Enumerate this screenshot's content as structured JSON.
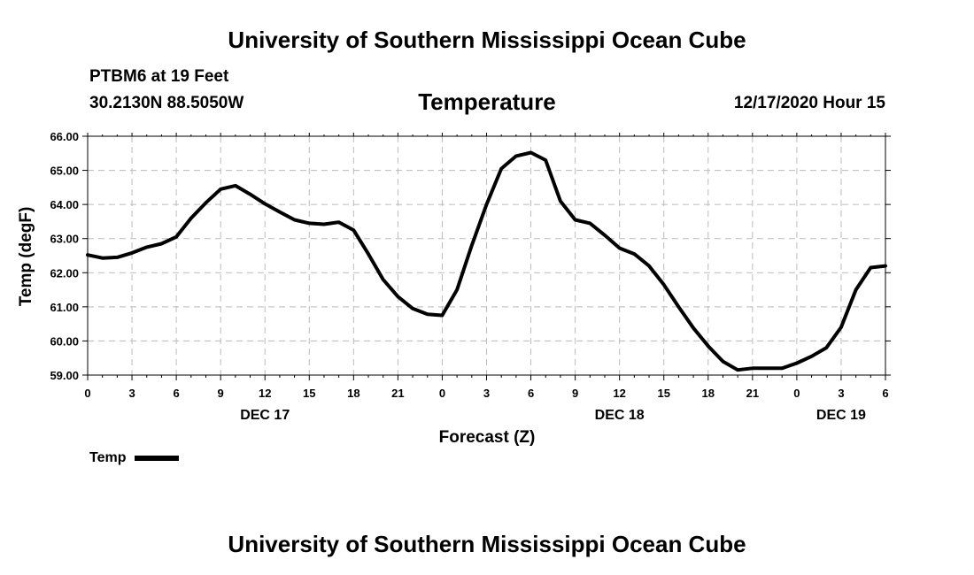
{
  "header": {
    "title": "University of Southern Mississippi Ocean Cube",
    "station": "PTBM6 at 19 Feet",
    "coords": "30.2130N 88.5050W",
    "chart_title": "Temperature",
    "issued": "12/17/2020 Hour 15"
  },
  "footer": {
    "title": "University of Southern Mississippi Ocean Cube"
  },
  "legend": {
    "label": "Temp"
  },
  "chart_data": {
    "type": "line",
    "title": "Temperature",
    "xlabel": "Forecast (Z)",
    "ylabel": "Temp (degF)",
    "xlim": [
      0,
      54
    ],
    "ylim": [
      59,
      66
    ],
    "grid": true,
    "x_ticks": [
      0,
      3,
      6,
      9,
      12,
      15,
      18,
      21,
      24,
      27,
      30,
      33,
      36,
      39,
      42,
      45,
      48,
      51,
      54
    ],
    "x_tick_labels": [
      "0",
      "3",
      "6",
      "9",
      "12",
      "15",
      "18",
      "21",
      "0",
      "3",
      "6",
      "9",
      "12",
      "15",
      "18",
      "21",
      "0",
      "3",
      "6"
    ],
    "y_ticks": [
      59,
      60,
      61,
      62,
      63,
      64,
      65,
      66
    ],
    "y_tick_labels": [
      "59.00",
      "60.00",
      "61.00",
      "62.00",
      "63.00",
      "64.00",
      "65.00",
      "66.00"
    ],
    "day_labels": [
      {
        "x": 12,
        "label": "DEC 17"
      },
      {
        "x": 36,
        "label": "DEC 18"
      },
      {
        "x": 51,
        "label": "DEC 19"
      }
    ],
    "series": [
      {
        "name": "Temp",
        "color": "#000000",
        "x": [
          0,
          1,
          2,
          3,
          4,
          5,
          6,
          7,
          8,
          9,
          10,
          11,
          12,
          13,
          14,
          15,
          16,
          17,
          18,
          19,
          20,
          21,
          22,
          23,
          24,
          25,
          26,
          27,
          28,
          29,
          30,
          31,
          32,
          33,
          34,
          35,
          36,
          37,
          38,
          39,
          40,
          41,
          42,
          43,
          44,
          45,
          46,
          47,
          48,
          49,
          50,
          51,
          52,
          53,
          54
        ],
        "values": [
          62.52,
          62.43,
          62.45,
          62.58,
          62.75,
          62.85,
          63.05,
          63.6,
          64.05,
          64.45,
          64.55,
          64.3,
          64.02,
          63.78,
          63.55,
          63.45,
          63.42,
          63.48,
          63.25,
          62.55,
          61.8,
          61.3,
          60.95,
          60.78,
          60.75,
          61.5,
          62.8,
          64.0,
          65.05,
          65.42,
          65.52,
          65.3,
          64.1,
          63.55,
          63.45,
          63.1,
          62.72,
          62.55,
          62.2,
          61.65,
          61.0,
          60.38,
          59.85,
          59.4,
          59.15,
          59.2,
          59.2,
          59.2,
          59.35,
          59.55,
          59.8,
          60.4,
          61.5,
          62.15,
          62.2
        ]
      }
    ]
  }
}
